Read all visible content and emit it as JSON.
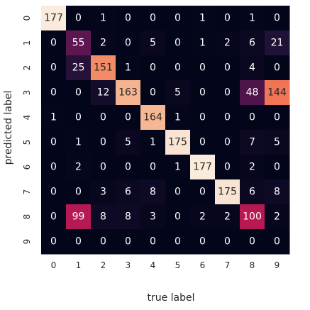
{
  "chart_data": {
    "type": "heatmap",
    "xlabel": "true label",
    "ylabel": "predicted label",
    "x_categories": [
      "0",
      "1",
      "2",
      "3",
      "4",
      "5",
      "6",
      "7",
      "8",
      "9"
    ],
    "y_categories": [
      "0",
      "1",
      "2",
      "3",
      "4",
      "5",
      "6",
      "7",
      "8",
      "9"
    ],
    "values": [
      [
        177,
        0,
        1,
        0,
        0,
        0,
        1,
        0,
        1,
        0
      ],
      [
        0,
        55,
        2,
        0,
        5,
        0,
        1,
        2,
        6,
        21
      ],
      [
        0,
        25,
        151,
        1,
        0,
        0,
        0,
        0,
        4,
        0
      ],
      [
        0,
        0,
        12,
        163,
        0,
        5,
        0,
        0,
        48,
        144
      ],
      [
        1,
        0,
        0,
        0,
        164,
        1,
        0,
        0,
        0,
        0
      ],
      [
        0,
        1,
        0,
        5,
        1,
        175,
        0,
        0,
        7,
        5
      ],
      [
        0,
        2,
        0,
        0,
        0,
        1,
        177,
        0,
        2,
        0
      ],
      [
        0,
        0,
        3,
        6,
        8,
        0,
        0,
        175,
        6,
        8
      ],
      [
        0,
        99,
        8,
        8,
        3,
        0,
        2,
        2,
        100,
        2
      ],
      [
        0,
        0,
        0,
        0,
        0,
        0,
        0,
        0,
        0,
        0
      ]
    ],
    "colormap": "rocket",
    "value_range": [
      0,
      177
    ],
    "annotations": "cell values shown",
    "colorbar": false
  }
}
